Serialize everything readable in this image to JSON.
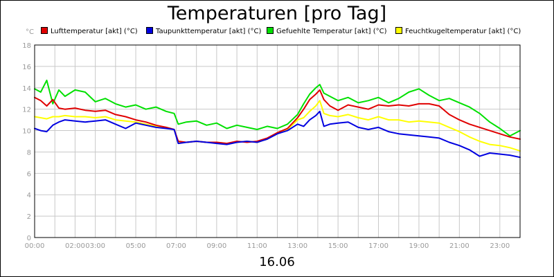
{
  "chart_data": {
    "type": "line",
    "title": "Temperaturen [pro Tag]",
    "xlabel": "16.06",
    "ylabel": "°C",
    "xlim": [
      0,
      24
    ],
    "ylim": [
      0,
      18
    ],
    "grid": true,
    "legend_position": "top",
    "x_ticks": [
      {
        "h": 0,
        "label": "00:00"
      },
      {
        "h": 2,
        "label": "02:00"
      },
      {
        "h": 3,
        "label": "03:00"
      },
      {
        "h": 5,
        "label": "05:00"
      },
      {
        "h": 7,
        "label": "07:00"
      },
      {
        "h": 9,
        "label": "09:00"
      },
      {
        "h": 11,
        "label": "11:00"
      },
      {
        "h": 13,
        "label": "13:00"
      },
      {
        "h": 15,
        "label": "15:00"
      },
      {
        "h": 17,
        "label": "17:00"
      },
      {
        "h": 19,
        "label": "19:00"
      },
      {
        "h": 21,
        "label": "21:00"
      },
      {
        "h": 23,
        "label": "23:00"
      }
    ],
    "y_ticks": [
      0,
      2,
      4,
      6,
      8,
      10,
      12,
      14,
      16,
      18
    ],
    "series": [
      {
        "name": "Lufttemperatur [akt] (°C)",
        "color": "#e00000",
        "x": [
          0,
          0.3,
          0.6,
          0.9,
          1.2,
          1.5,
          2,
          2.5,
          3,
          3.5,
          4,
          4.5,
          5,
          5.5,
          6,
          6.5,
          6.9,
          7.1,
          7.5,
          8,
          8.5,
          9,
          9.5,
          10,
          10.5,
          11,
          11.5,
          12,
          12.5,
          13,
          13.3,
          13.6,
          13.9,
          14.1,
          14.3,
          14.6,
          15,
          15.5,
          16,
          16.5,
          17,
          17.5,
          18,
          18.5,
          19,
          19.5,
          20,
          20.5,
          21,
          21.5,
          22,
          22.5,
          23,
          23.5,
          24
        ],
        "y": [
          13.1,
          12.8,
          12.3,
          12.9,
          12.1,
          12.0,
          12.1,
          11.9,
          11.8,
          11.9,
          11.5,
          11.3,
          11.0,
          10.8,
          10.5,
          10.3,
          10.1,
          9.0,
          8.9,
          9.0,
          8.9,
          8.9,
          8.8,
          9.0,
          8.9,
          9.0,
          9.3,
          9.8,
          10.2,
          11.2,
          12.0,
          12.9,
          13.4,
          13.8,
          12.9,
          12.3,
          11.9,
          12.4,
          12.2,
          12.0,
          12.4,
          12.3,
          12.4,
          12.3,
          12.5,
          12.5,
          12.3,
          11.5,
          11.0,
          10.6,
          10.3,
          10.0,
          9.7,
          9.4,
          9.2
        ]
      },
      {
        "name": "Taupunkttemperatur [akt] (°C)",
        "color": "#0000e0",
        "x": [
          0,
          0.3,
          0.6,
          0.9,
          1.2,
          1.5,
          2,
          2.5,
          3,
          3.5,
          4,
          4.5,
          5,
          5.5,
          6,
          6.5,
          6.9,
          7.1,
          7.5,
          8,
          8.5,
          9,
          9.5,
          10,
          10.5,
          11,
          11.5,
          12,
          12.5,
          13,
          13.3,
          13.6,
          13.9,
          14.1,
          14.3,
          14.6,
          15,
          15.5,
          16,
          16.5,
          17,
          17.5,
          18,
          18.5,
          19,
          19.5,
          20,
          20.5,
          21,
          21.5,
          22,
          22.5,
          23,
          23.5,
          24
        ],
        "y": [
          10.2,
          10.0,
          9.9,
          10.5,
          10.8,
          11.0,
          10.9,
          10.8,
          10.9,
          11.0,
          10.6,
          10.2,
          10.7,
          10.5,
          10.3,
          10.2,
          10.1,
          8.8,
          8.9,
          9.0,
          8.9,
          8.8,
          8.7,
          8.9,
          9.0,
          8.9,
          9.2,
          9.7,
          10.0,
          10.6,
          10.4,
          11.0,
          11.4,
          11.8,
          10.4,
          10.6,
          10.7,
          10.8,
          10.3,
          10.1,
          10.3,
          9.9,
          9.7,
          9.6,
          9.5,
          9.4,
          9.3,
          8.9,
          8.6,
          8.2,
          7.6,
          7.9,
          7.8,
          7.7,
          7.5
        ]
      },
      {
        "name": "Gefuehlte Temperatur [akt] (°C)",
        "color": "#00e000",
        "x": [
          0,
          0.3,
          0.6,
          0.9,
          1.2,
          1.5,
          2,
          2.5,
          3,
          3.5,
          4,
          4.5,
          5,
          5.5,
          6,
          6.5,
          6.9,
          7.1,
          7.5,
          8,
          8.5,
          9,
          9.5,
          10,
          10.5,
          11,
          11.5,
          12,
          12.5,
          13,
          13.3,
          13.6,
          13.9,
          14.1,
          14.3,
          14.6,
          15,
          15.5,
          16,
          16.5,
          17,
          17.5,
          18,
          18.5,
          19,
          19.5,
          20,
          20.5,
          21,
          21.5,
          22,
          22.5,
          23,
          23.5,
          24
        ],
        "y": [
          13.9,
          13.6,
          14.7,
          12.5,
          13.8,
          13.2,
          13.8,
          13.6,
          12.7,
          13.0,
          12.5,
          12.2,
          12.4,
          12.0,
          12.2,
          11.8,
          11.6,
          10.6,
          10.8,
          10.9,
          10.5,
          10.7,
          10.2,
          10.5,
          10.3,
          10.1,
          10.4,
          10.2,
          10.6,
          11.5,
          12.5,
          13.4,
          14.0,
          14.3,
          13.5,
          13.2,
          12.8,
          13.1,
          12.6,
          12.8,
          13.1,
          12.6,
          13.0,
          13.6,
          13.9,
          13.3,
          12.8,
          13.0,
          12.6,
          12.2,
          11.6,
          10.8,
          10.2,
          9.5,
          10.0
        ]
      },
      {
        "name": "Feuchtkugeltemperatur [akt] (°C)",
        "color": "#ffff00",
        "x": [
          0,
          0.3,
          0.6,
          0.9,
          1.2,
          1.5,
          2,
          2.5,
          3,
          3.5,
          4,
          4.5,
          5,
          5.5,
          6,
          6.5,
          6.9,
          7.1,
          7.5,
          8,
          8.5,
          9,
          9.5,
          10,
          10.5,
          11,
          11.5,
          12,
          12.5,
          13,
          13.3,
          13.6,
          13.9,
          14.1,
          14.3,
          14.6,
          15,
          15.5,
          16,
          16.5,
          17,
          17.5,
          18,
          18.5,
          19,
          19.5,
          20,
          20.5,
          21,
          21.5,
          22,
          22.5,
          23,
          23.5,
          24
        ],
        "y": [
          11.3,
          11.2,
          11.1,
          11.3,
          11.3,
          11.4,
          11.3,
          11.3,
          11.2,
          11.3,
          11.0,
          10.9,
          10.8,
          10.6,
          10.4,
          10.3,
          10.1,
          8.9,
          8.9,
          9.0,
          8.9,
          8.9,
          8.8,
          8.9,
          9.0,
          8.9,
          9.2,
          9.8,
          10.1,
          11.0,
          11.2,
          11.8,
          12.3,
          12.8,
          11.6,
          11.4,
          11.3,
          11.5,
          11.2,
          11.0,
          11.3,
          11.0,
          11.0,
          10.8,
          10.9,
          10.8,
          10.7,
          10.3,
          9.9,
          9.4,
          9.0,
          8.7,
          8.6,
          8.4,
          8.1
        ]
      }
    ]
  }
}
